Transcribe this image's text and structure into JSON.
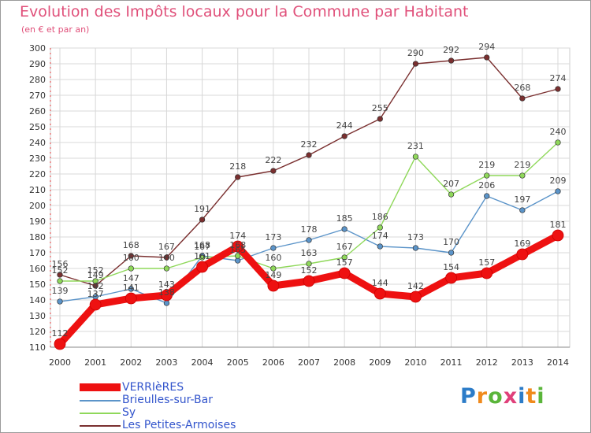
{
  "chart_data": {
    "type": "line",
    "title": "Evolution des Impôts locaux pour la Commune par Habitant",
    "subtitle": "(en € et par an)",
    "x": [
      "2000",
      "2001",
      "2002",
      "2003",
      "2004",
      "2005",
      "2006",
      "2007",
      "2008",
      "2009",
      "2010",
      "2011",
      "2012",
      "2013",
      "2014"
    ],
    "ylim": [
      110,
      300
    ],
    "yticks": [
      110,
      120,
      130,
      140,
      150,
      160,
      170,
      180,
      190,
      200,
      210,
      220,
      230,
      240,
      250,
      260,
      270,
      280,
      290,
      300
    ],
    "grid": true,
    "legend_position": "bottom-left",
    "series": [
      {
        "name": "VERRIèRES",
        "color": "#ee1111",
        "values": [
          112,
          137,
          141,
          143,
          161,
          174,
          149,
          152,
          157,
          144,
          142,
          154,
          157,
          169,
          181
        ]
      },
      {
        "name": "Brieulles-sur-Bar",
        "color": "#5b94c9",
        "values": [
          139,
          142,
          147,
          138,
          168,
          165,
          173,
          178,
          185,
          174,
          173,
          170,
          206,
          197,
          209
        ]
      },
      {
        "name": "Sy",
        "color": "#8fd85a",
        "values": [
          152,
          152,
          160,
          160,
          167,
          168,
          160,
          163,
          167,
          186,
          231,
          207,
          219,
          219,
          240
        ]
      },
      {
        "name": "Les Petites-Armoises",
        "color": "#7a2f2f",
        "values": [
          156,
          149,
          168,
          167,
          191,
          218,
          222,
          232,
          244,
          255,
          290,
          292,
          294,
          268,
          274
        ]
      }
    ]
  },
  "logo": {
    "letters": [
      "P",
      "r",
      "o",
      "x",
      "i",
      "t",
      "i"
    ],
    "colors": [
      "#2c7cc8",
      "#f08a1c",
      "#5ab53a",
      "#e0407a",
      "#2c7cc8",
      "#f08a1c",
      "#5ab53a"
    ]
  }
}
